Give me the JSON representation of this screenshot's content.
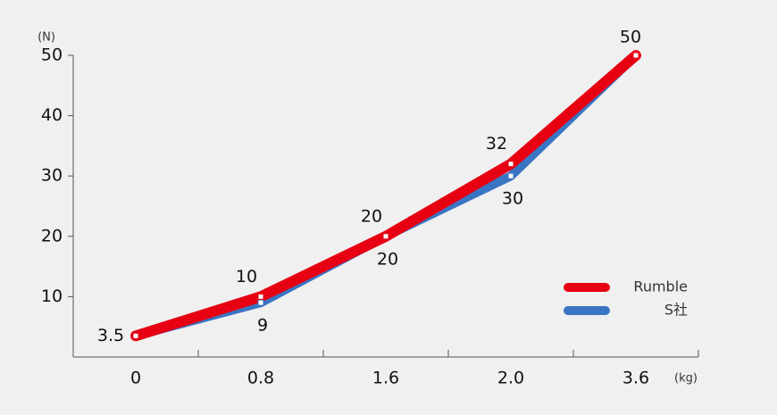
{
  "chart_data": {
    "type": "line",
    "y_unit": "(N)",
    "x_unit": "(kg)",
    "categories": [
      "0",
      "0.8",
      "1.6",
      "2.0",
      "3.6"
    ],
    "series": [
      {
        "name": "Rumble",
        "color": "#e60012",
        "values": [
          3.5,
          10,
          20,
          32,
          50
        ]
      },
      {
        "name": "S社",
        "color": "#3a75c4",
        "values": [
          3.5,
          9,
          20,
          30,
          50
        ]
      }
    ],
    "ylim": [
      0,
      50
    ],
    "yticks": [
      10,
      20,
      30,
      40,
      50
    ],
    "legend": "lower right"
  }
}
